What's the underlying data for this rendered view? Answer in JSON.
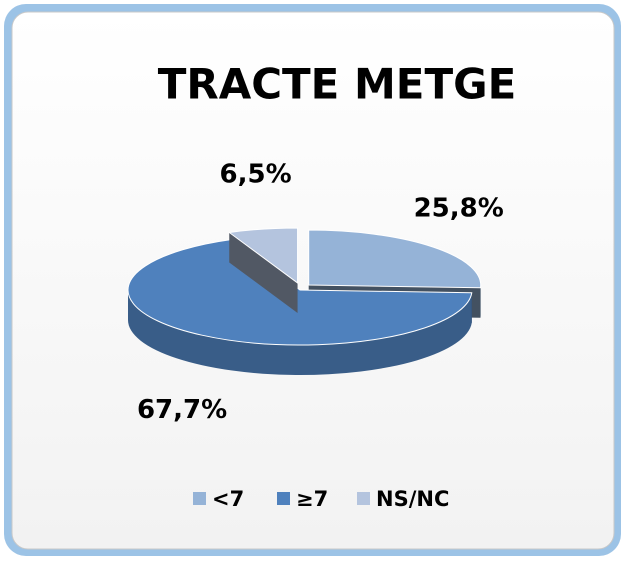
{
  "chart_data": {
    "type": "pie",
    "title": "TRACTE METGE",
    "categories": [
      "<7",
      "≥7",
      "NS/NC"
    ],
    "values": [
      25.8,
      67.7,
      6.5
    ],
    "value_labels": [
      "25,8%",
      "67,7%",
      "6,5%"
    ],
    "colors": [
      "#95b3d7",
      "#4f81bd",
      "#b4c4de"
    ],
    "legend": "bottom"
  }
}
